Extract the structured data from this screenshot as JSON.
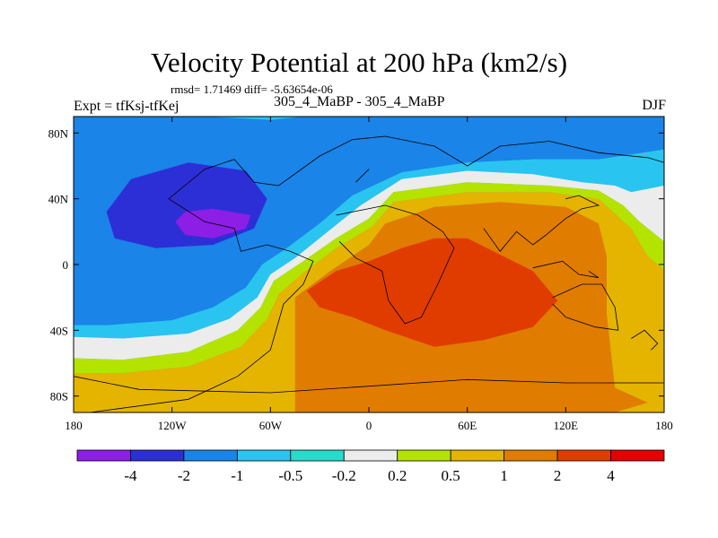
{
  "chart_data": {
    "type": "heatmap",
    "title": "Velocity Potential at 200 hPa (km2/s)",
    "stats": "rmsd= 1.71469 diff= -5.63654e-06",
    "left_label": "Expt = tfKsj-tfKej",
    "center_label": "305_4_MaBP - 305_4_MaBP",
    "right_label": "DJF",
    "x_ticks": [
      "180",
      "120W",
      "60W",
      "0",
      "60E",
      "120E",
      "180"
    ],
    "x_values": [
      -180,
      -120,
      -60,
      0,
      60,
      120,
      180
    ],
    "y_ticks": [
      "80N",
      "40N",
      "0",
      "40S",
      "80S"
    ],
    "y_values": [
      80,
      40,
      0,
      -40,
      -80
    ],
    "xlim": [
      -180,
      180
    ],
    "ylim": [
      -90,
      90
    ],
    "colorbar_levels": [
      "-4",
      "-2",
      "-1",
      "-0.5",
      "-0.2",
      "0.2",
      "0.5",
      "1",
      "2",
      "4"
    ],
    "colorbar_colors": [
      "#8c1ee6",
      "#2d2fd6",
      "#1a84e8",
      "#2ac4f0",
      "#27dccb",
      "#ececec",
      "#b5e300",
      "#e4b400",
      "#e07c00",
      "#e03c00",
      "#e60000"
    ],
    "contour_fields": [
      {
        "name": "neg-high",
        "bin": 2,
        "path": [
          [
            -180,
            90
          ],
          [
            -100,
            90
          ],
          [
            -60,
            88
          ],
          [
            -40,
            90
          ],
          [
            180,
            90
          ],
          [
            180,
            70
          ],
          [
            140,
            64
          ],
          [
            100,
            64
          ],
          [
            60,
            62
          ],
          [
            20,
            56
          ],
          [
            -10,
            42
          ],
          [
            -30,
            25
          ],
          [
            -50,
            10
          ],
          [
            -65,
            0
          ],
          [
            -75,
            -14
          ],
          [
            -95,
            -26
          ],
          [
            -120,
            -34
          ],
          [
            -160,
            -37
          ],
          [
            -180,
            -37
          ]
        ]
      },
      {
        "name": "neg-mid",
        "bin": 3,
        "path": [
          [
            -180,
            -37
          ],
          [
            -160,
            -37
          ],
          [
            -120,
            -34
          ],
          [
            -95,
            -26
          ],
          [
            -75,
            -14
          ],
          [
            -65,
            0
          ],
          [
            -50,
            10
          ],
          [
            -30,
            25
          ],
          [
            -10,
            42
          ],
          [
            20,
            56
          ],
          [
            60,
            62
          ],
          [
            100,
            64
          ],
          [
            140,
            64
          ],
          [
            180,
            70
          ],
          [
            180,
            48
          ],
          [
            160,
            44
          ],
          [
            150,
            48
          ],
          [
            130,
            50
          ],
          [
            100,
            55
          ],
          [
            60,
            57
          ],
          [
            20,
            52
          ],
          [
            -5,
            36
          ],
          [
            -25,
            20
          ],
          [
            -45,
            4
          ],
          [
            -60,
            -6
          ],
          [
            -68,
            -20
          ],
          [
            -85,
            -33
          ],
          [
            -110,
            -42
          ],
          [
            -150,
            -45
          ],
          [
            -180,
            -44
          ]
        ]
      },
      {
        "name": "neutral",
        "bin": 5,
        "path": [
          [
            -180,
            -44
          ],
          [
            -150,
            -45
          ],
          [
            -110,
            -42
          ],
          [
            -85,
            -33
          ],
          [
            -68,
            -20
          ],
          [
            -60,
            -6
          ],
          [
            -45,
            4
          ],
          [
            -25,
            20
          ],
          [
            -5,
            36
          ],
          [
            20,
            52
          ],
          [
            60,
            57
          ],
          [
            100,
            55
          ],
          [
            130,
            50
          ],
          [
            150,
            48
          ],
          [
            160,
            44
          ],
          [
            180,
            48
          ],
          [
            180,
            14
          ],
          [
            165,
            26
          ],
          [
            155,
            36
          ],
          [
            140,
            45
          ],
          [
            110,
            48
          ],
          [
            60,
            50
          ],
          [
            15,
            44
          ],
          [
            0,
            28
          ],
          [
            -20,
            16
          ],
          [
            -40,
            2
          ],
          [
            -58,
            -10
          ],
          [
            -66,
            -26
          ],
          [
            -80,
            -40
          ],
          [
            -110,
            -53
          ],
          [
            -150,
            -58
          ],
          [
            -180,
            -57
          ]
        ]
      },
      {
        "name": "pos-low",
        "bin": 6,
        "path": [
          [
            -180,
            -57
          ],
          [
            -150,
            -58
          ],
          [
            -110,
            -53
          ],
          [
            -80,
            -40
          ],
          [
            -66,
            -26
          ],
          [
            -58,
            -10
          ],
          [
            -40,
            2
          ],
          [
            -20,
            16
          ],
          [
            0,
            28
          ],
          [
            15,
            44
          ],
          [
            60,
            50
          ],
          [
            110,
            48
          ],
          [
            140,
            45
          ],
          [
            155,
            36
          ],
          [
            165,
            26
          ],
          [
            180,
            14
          ],
          [
            180,
            -3
          ],
          [
            170,
            5
          ],
          [
            160,
            22
          ],
          [
            140,
            40
          ],
          [
            110,
            44
          ],
          [
            60,
            44
          ],
          [
            15,
            38
          ],
          [
            2,
            23
          ],
          [
            -20,
            10
          ],
          [
            -40,
            -5
          ],
          [
            -55,
            -18
          ],
          [
            -62,
            -33
          ],
          [
            -78,
            -50
          ],
          [
            -110,
            -62
          ],
          [
            -150,
            -66
          ],
          [
            -180,
            -66
          ]
        ]
      },
      {
        "name": "pos-mid",
        "bin": 7,
        "path": [
          [
            -180,
            -66
          ],
          [
            -150,
            -66
          ],
          [
            -110,
            -62
          ],
          [
            -78,
            -50
          ],
          [
            -62,
            -33
          ],
          [
            -55,
            -18
          ],
          [
            -40,
            -5
          ],
          [
            -20,
            10
          ],
          [
            2,
            23
          ],
          [
            15,
            38
          ],
          [
            60,
            44
          ],
          [
            110,
            44
          ],
          [
            140,
            40
          ],
          [
            160,
            22
          ],
          [
            170,
            5
          ],
          [
            180,
            -3
          ],
          [
            180,
            -90
          ],
          [
            -180,
            -90
          ]
        ]
      },
      {
        "name": "pos-high",
        "bin": 8,
        "path": [
          [
            -45,
            -82
          ],
          [
            -45,
            -20
          ],
          [
            -25,
            -5
          ],
          [
            0,
            12
          ],
          [
            10,
            25
          ],
          [
            40,
            35
          ],
          [
            80,
            38
          ],
          [
            120,
            35
          ],
          [
            140,
            25
          ],
          [
            145,
            5
          ],
          [
            145,
            -30
          ],
          [
            150,
            -75
          ],
          [
            170,
            -84
          ],
          [
            150,
            -90
          ],
          [
            -45,
            -90
          ]
        ]
      },
      {
        "name": "pos-peak",
        "bin": 9,
        "path": [
          [
            -38,
            -16
          ],
          [
            -20,
            -4
          ],
          [
            0,
            2
          ],
          [
            20,
            10
          ],
          [
            40,
            16
          ],
          [
            60,
            16
          ],
          [
            80,
            6
          ],
          [
            100,
            -4
          ],
          [
            115,
            -22
          ],
          [
            100,
            -38
          ],
          [
            70,
            -46
          ],
          [
            40,
            -50
          ],
          [
            10,
            -40
          ],
          [
            -10,
            -32
          ],
          [
            -30,
            -26
          ]
        ]
      },
      {
        "name": "neg-core",
        "bin": 1,
        "path": [
          [
            -160,
            32
          ],
          [
            -145,
            52
          ],
          [
            -110,
            62
          ],
          [
            -75,
            57
          ],
          [
            -62,
            40
          ],
          [
            -70,
            22
          ],
          [
            -95,
            12
          ],
          [
            -130,
            10
          ],
          [
            -155,
            16
          ]
        ]
      },
      {
        "name": "neg-peak",
        "bin": 0,
        "path": [
          [
            -118,
            26
          ],
          [
            -112,
            32
          ],
          [
            -95,
            34
          ],
          [
            -72,
            30
          ],
          [
            -75,
            22
          ],
          [
            -95,
            16
          ],
          [
            -112,
            18
          ]
        ]
      }
    ],
    "coastlines": [
      [
        [
          -170,
          -90
        ],
        [
          -110,
          -82
        ],
        [
          -80,
          -68
        ],
        [
          -60,
          -52
        ],
        [
          -52,
          -24
        ],
        [
          -40,
          -12
        ],
        [
          -34,
          2
        ],
        [
          -48,
          8
        ],
        [
          -62,
          12
        ],
        [
          -78,
          8
        ],
        [
          -82,
          22
        ],
        [
          -100,
          26
        ],
        [
          -122,
          40
        ],
        [
          -100,
          58
        ],
        [
          -82,
          64
        ],
        [
          -70,
          50
        ],
        [
          -55,
          48
        ],
        [
          -30,
          66
        ],
        [
          -10,
          76
        ],
        [
          10,
          78
        ],
        [
          40,
          72
        ],
        [
          60,
          60
        ],
        [
          80,
          72
        ],
        [
          110,
          75
        ],
        [
          140,
          68
        ],
        [
          170,
          65
        ],
        [
          180,
          62
        ]
      ],
      [
        [
          -20,
          30
        ],
        [
          10,
          36
        ],
        [
          30,
          30
        ],
        [
          45,
          20
        ],
        [
          52,
          10
        ],
        [
          42,
          -12
        ],
        [
          32,
          -32
        ],
        [
          22,
          -36
        ],
        [
          12,
          -22
        ],
        [
          8,
          -4
        ],
        [
          -8,
          4
        ],
        [
          -18,
          14
        ]
      ],
      [
        [
          70,
          22
        ],
        [
          80,
          8
        ],
        [
          90,
          20
        ],
        [
          100,
          12
        ],
        [
          108,
          18
        ],
        [
          120,
          28
        ],
        [
          130,
          34
        ],
        [
          140,
          36
        ],
        [
          128,
          42
        ],
        [
          120,
          40
        ]
      ],
      [
        [
          112,
          -20
        ],
        [
          130,
          -12
        ],
        [
          142,
          -12
        ],
        [
          150,
          -26
        ],
        [
          152,
          -40
        ],
        [
          138,
          -38
        ],
        [
          120,
          -32
        ],
        [
          112,
          -24
        ]
      ],
      [
        [
          160,
          -45
        ],
        [
          168,
          -40
        ],
        [
          176,
          -48
        ],
        [
          172,
          -52
        ]
      ],
      [
        [
          -180,
          -68
        ],
        [
          -140,
          -76
        ],
        [
          -60,
          -78
        ],
        [
          0,
          -74
        ],
        [
          60,
          -70
        ],
        [
          120,
          -72
        ],
        [
          180,
          -72
        ]
      ],
      [
        [
          100,
          -2
        ],
        [
          118,
          2
        ],
        [
          128,
          -6
        ],
        [
          140,
          -8
        ],
        [
          134,
          -4
        ]
      ],
      [
        [
          -8,
          50
        ],
        [
          0,
          58
        ],
        [
          -4,
          54
        ]
      ]
    ]
  }
}
